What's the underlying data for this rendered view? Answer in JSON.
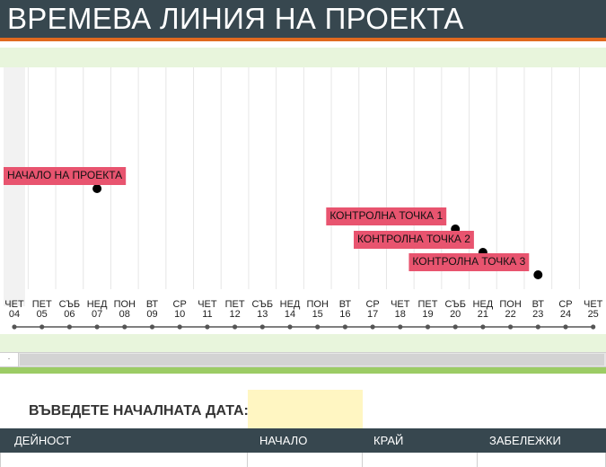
{
  "title": "ВРЕМЕВА ЛИНИЯ НА ПРОЕКТА",
  "timeline": {
    "days": [
      {
        "day": "ЧЕТ",
        "date": "04"
      },
      {
        "day": "ПЕТ",
        "date": "05"
      },
      {
        "day": "СЪБ",
        "date": "06"
      },
      {
        "day": "НЕД",
        "date": "07"
      },
      {
        "day": "ПОН",
        "date": "08"
      },
      {
        "day": "ВТ",
        "date": "09"
      },
      {
        "day": "СР",
        "date": "10"
      },
      {
        "day": "ЧЕТ",
        "date": "11"
      },
      {
        "day": "ПЕТ",
        "date": "12"
      },
      {
        "day": "СЪБ",
        "date": "13"
      },
      {
        "day": "НЕД",
        "date": "14"
      },
      {
        "day": "ПОН",
        "date": "15"
      },
      {
        "day": "ВТ",
        "date": "16"
      },
      {
        "day": "СР",
        "date": "17"
      },
      {
        "day": "ЧЕТ",
        "date": "18"
      },
      {
        "day": "ПЕТ",
        "date": "19"
      },
      {
        "day": "СЪБ",
        "date": "20"
      },
      {
        "day": "НЕД",
        "date": "21"
      },
      {
        "day": "ПОН",
        "date": "22"
      },
      {
        "day": "ВТ",
        "date": "23"
      },
      {
        "day": "СР",
        "date": "24"
      },
      {
        "day": "ЧЕТ",
        "date": "25"
      }
    ],
    "milestones": [
      {
        "label": "НАЧАЛО НА ПРОЕКТА",
        "day_index": 3,
        "row": 0
      },
      {
        "label": "КОНТРОЛНА ТОЧКА 1",
        "day_index": 16,
        "row": 1
      },
      {
        "label": "КОНТРОЛНА ТОЧКА 2",
        "day_index": 17,
        "row": 2
      },
      {
        "label": "КОНТРОЛНА ТОЧКА 3",
        "day_index": 19,
        "row": 3
      }
    ],
    "colors": {
      "milestone_bg": "#e8546f",
      "grid": "#e6e6e6",
      "axis": "#555555"
    }
  },
  "scrollbar": {
    "button_glyph": "·"
  },
  "form": {
    "start_date_label": "ВЪВЕДЕТЕ НАЧАЛНАТА ДАТА:",
    "start_date_value": ""
  },
  "table": {
    "headers": {
      "activity": "ДЕЙНОСТ",
      "start": "НАЧАЛО",
      "end": "КРАЙ",
      "notes": "ЗАБЕЛЕЖКИ"
    }
  }
}
